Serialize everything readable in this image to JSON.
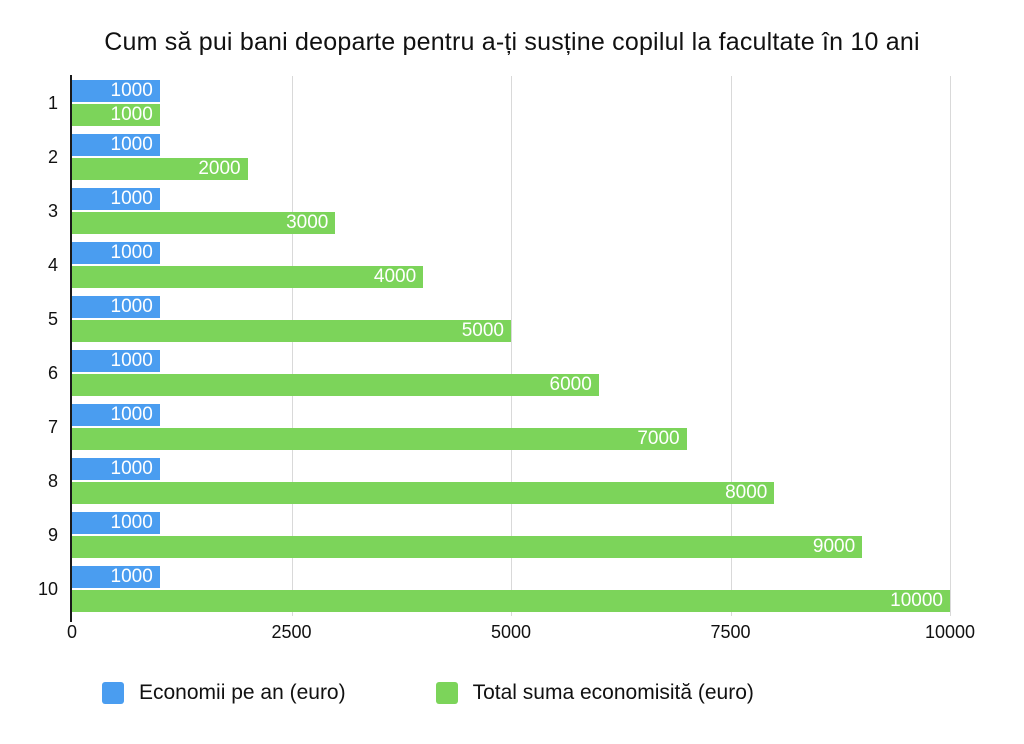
{
  "chart_data": {
    "type": "bar",
    "orientation": "horizontal",
    "title": "Cum să pui bani deoparte pentru a-ți susține copilul la facultate în 10 ani",
    "categories": [
      "1",
      "2",
      "3",
      "4",
      "5",
      "6",
      "7",
      "8",
      "9",
      "10"
    ],
    "series": [
      {
        "name": "Economii pe an (euro)",
        "color": "#4A9DF0",
        "values": [
          1000,
          1000,
          1000,
          1000,
          1000,
          1000,
          1000,
          1000,
          1000,
          1000
        ]
      },
      {
        "name": "Total suma economisită (euro)",
        "color": "#7CD45A",
        "values": [
          1000,
          2000,
          3000,
          4000,
          5000,
          6000,
          7000,
          8000,
          9000,
          10000
        ]
      }
    ],
    "xlim": [
      0,
      10000
    ],
    "x_ticks": [
      0,
      2500,
      5000,
      7500,
      10000
    ],
    "grid": "vertical",
    "grid_color": "#d9d9d9",
    "axis_color": "#1a1a1a",
    "value_labels": "inside-end-white",
    "legend_position": "bottom",
    "xlabel": "",
    "ylabel": ""
  }
}
